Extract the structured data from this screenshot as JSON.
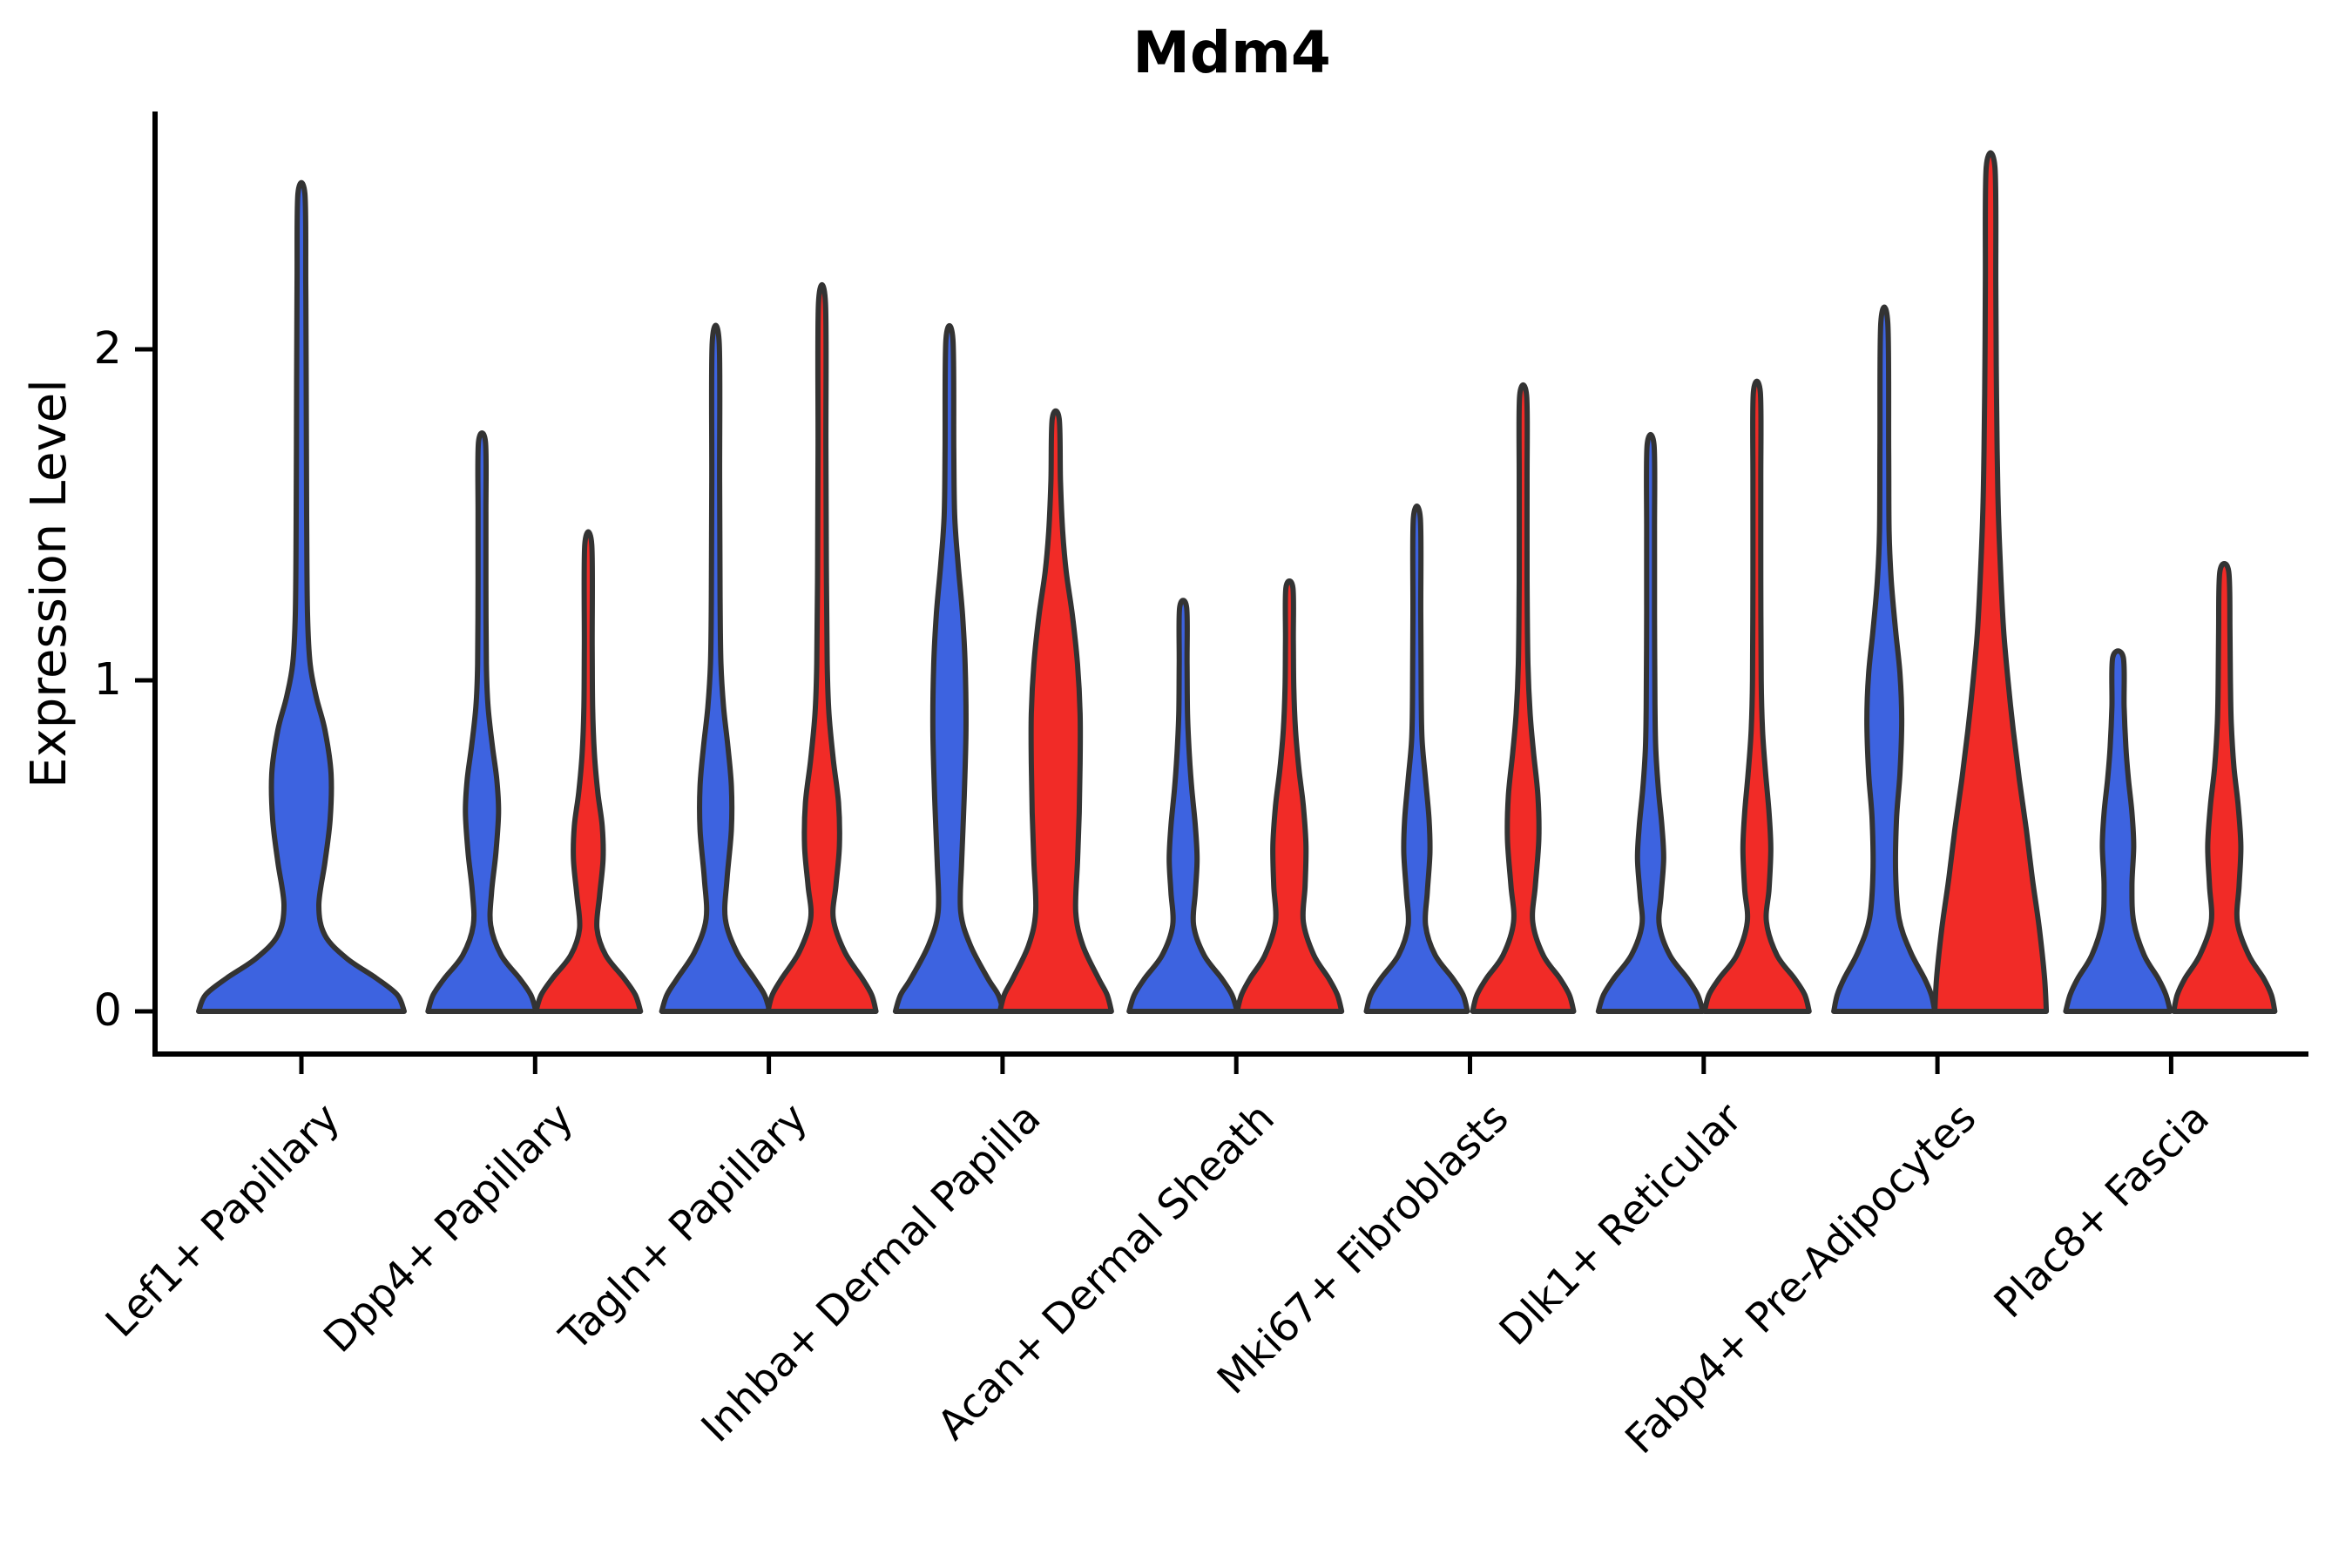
{
  "title": "Mdm4",
  "y_axis": {
    "label": "Expression Level",
    "tick_labels": [
      "0",
      "1",
      "2"
    ],
    "tick_values": [
      0,
      1,
      2
    ]
  },
  "x_axis": {
    "categories": [
      "Lef1+ Papillary",
      "Dpp4+ Papillary",
      "Tagln+ Papillary",
      "Inhba+ Dermal Papilla",
      "Acan+ Dermal Sheath",
      "Mki67+ Fibroblasts",
      "Dlk1+ Reticular",
      "Fabp4+ Pre-Adipocytes",
      "Plac8+ Fascia"
    ]
  },
  "colors": {
    "group_blue": "#3d63e0",
    "group_red": "#f12b27",
    "outline": "#333333",
    "axis": "#000000",
    "text": "#000000",
    "background": "#ffffff"
  },
  "chart_data": {
    "type": "violin",
    "title": "Mdm4",
    "xlabel": "",
    "ylabel": "Expression Level",
    "ylim": [
      0,
      2.7
    ],
    "yticks": [
      0,
      1,
      2
    ],
    "grid": false,
    "legend": "none",
    "categories": [
      "Lef1+ Papillary",
      "Dpp4+ Papillary",
      "Tagln+ Papillary",
      "Inhba+ Dermal Papilla",
      "Acan+ Dermal Sheath",
      "Mki67+ Fibroblasts",
      "Dlk1+ Reticular",
      "Fabp4+ Pre-Adipocytes",
      "Plac8+ Fascia"
    ],
    "groups": [
      {
        "name": "group-blue",
        "color": "#3d63e0"
      },
      {
        "name": "group-red",
        "color": "#f12b27"
      }
    ],
    "violins": [
      {
        "category_index": 0,
        "group": 0,
        "side": "center",
        "max_expression": 2.47,
        "profile": [
          [
            0,
            118
          ],
          [
            0.05,
            110
          ],
          [
            0.1,
            86
          ],
          [
            0.16,
            52
          ],
          [
            0.23,
            27
          ],
          [
            0.32,
            20
          ],
          [
            0.45,
            27
          ],
          [
            0.58,
            33
          ],
          [
            0.72,
            34
          ],
          [
            0.85,
            27
          ],
          [
            0.95,
            17
          ],
          [
            1.05,
            10
          ],
          [
            1.2,
            7
          ],
          [
            1.5,
            6
          ],
          [
            1.9,
            5.5
          ],
          [
            2.2,
            5
          ],
          [
            2.47,
            4
          ]
        ]
      },
      {
        "category_index": 1,
        "group": 0,
        "side": "left",
        "max_expression": 1.72,
        "profile": [
          [
            0,
            62
          ],
          [
            0.05,
            56
          ],
          [
            0.1,
            43
          ],
          [
            0.17,
            22
          ],
          [
            0.26,
            10
          ],
          [
            0.36,
            11
          ],
          [
            0.48,
            16
          ],
          [
            0.6,
            19
          ],
          [
            0.7,
            17
          ],
          [
            0.8,
            12
          ],
          [
            0.92,
            7
          ],
          [
            1.05,
            5
          ],
          [
            1.3,
            4.5
          ],
          [
            1.5,
            4.5
          ],
          [
            1.72,
            4
          ]
        ]
      },
      {
        "category_index": 1,
        "group": 1,
        "side": "right",
        "max_expression": 1.41,
        "profile": [
          [
            0,
            60
          ],
          [
            0.05,
            54
          ],
          [
            0.1,
            41
          ],
          [
            0.17,
            20
          ],
          [
            0.25,
            10
          ],
          [
            0.35,
            13
          ],
          [
            0.46,
            17
          ],
          [
            0.56,
            16
          ],
          [
            0.66,
            11
          ],
          [
            0.78,
            7
          ],
          [
            0.92,
            5
          ],
          [
            1.1,
            4.5
          ],
          [
            1.41,
            4
          ]
        ]
      },
      {
        "category_index": 2,
        "group": 0,
        "side": "left",
        "max_expression": 2.02,
        "profile": [
          [
            0,
            62
          ],
          [
            0.05,
            56
          ],
          [
            0.1,
            44
          ],
          [
            0.18,
            24
          ],
          [
            0.28,
            11
          ],
          [
            0.4,
            13
          ],
          [
            0.55,
            18
          ],
          [
            0.68,
            18
          ],
          [
            0.8,
            14
          ],
          [
            0.92,
            9
          ],
          [
            1.05,
            6
          ],
          [
            1.25,
            5
          ],
          [
            1.6,
            4.5
          ],
          [
            2.02,
            4
          ]
        ]
      },
      {
        "category_index": 2,
        "group": 1,
        "side": "right",
        "max_expression": 2.14,
        "profile": [
          [
            0,
            62
          ],
          [
            0.05,
            57
          ],
          [
            0.1,
            46
          ],
          [
            0.18,
            26
          ],
          [
            0.28,
            13
          ],
          [
            0.38,
            16
          ],
          [
            0.5,
            20
          ],
          [
            0.63,
            19
          ],
          [
            0.76,
            13
          ],
          [
            0.9,
            8
          ],
          [
            1.05,
            6
          ],
          [
            1.35,
            5
          ],
          [
            1.7,
            4.5
          ],
          [
            2.14,
            4
          ]
        ]
      },
      {
        "category_index": 3,
        "group": 0,
        "side": "left",
        "max_expression": 2.03,
        "profile": [
          [
            0,
            62
          ],
          [
            0.05,
            56
          ],
          [
            0.1,
            44
          ],
          [
            0.2,
            24
          ],
          [
            0.3,
            13
          ],
          [
            0.45,
            14
          ],
          [
            0.65,
            17
          ],
          [
            0.85,
            19
          ],
          [
            1.05,
            18
          ],
          [
            1.2,
            15
          ],
          [
            1.35,
            10
          ],
          [
            1.5,
            6
          ],
          [
            1.7,
            5
          ],
          [
            2.03,
            4
          ]
        ]
      },
      {
        "category_index": 3,
        "group": 1,
        "side": "right",
        "max_expression": 1.79,
        "profile": [
          [
            0,
            64
          ],
          [
            0.05,
            59
          ],
          [
            0.1,
            49
          ],
          [
            0.2,
            31
          ],
          [
            0.3,
            23
          ],
          [
            0.45,
            25
          ],
          [
            0.6,
            27
          ],
          [
            0.75,
            28
          ],
          [
            0.9,
            28
          ],
          [
            1.05,
            25
          ],
          [
            1.2,
            19
          ],
          [
            1.33,
            12
          ],
          [
            1.45,
            8
          ],
          [
            1.6,
            5.5
          ],
          [
            1.79,
            4
          ]
        ]
      },
      {
        "category_index": 4,
        "group": 0,
        "side": "left",
        "max_expression": 1.22,
        "profile": [
          [
            0,
            62
          ],
          [
            0.05,
            56
          ],
          [
            0.1,
            44
          ],
          [
            0.17,
            24
          ],
          [
            0.26,
            12
          ],
          [
            0.36,
            14
          ],
          [
            0.46,
            16
          ],
          [
            0.56,
            14
          ],
          [
            0.67,
            10
          ],
          [
            0.78,
            7
          ],
          [
            0.9,
            5
          ],
          [
            1.05,
            4.5
          ],
          [
            1.22,
            4
          ]
        ]
      },
      {
        "category_index": 4,
        "group": 1,
        "side": "right",
        "max_expression": 1.28,
        "profile": [
          [
            0,
            60
          ],
          [
            0.05,
            55
          ],
          [
            0.1,
            45
          ],
          [
            0.17,
            28
          ],
          [
            0.27,
            16
          ],
          [
            0.38,
            18
          ],
          [
            0.5,
            19
          ],
          [
            0.62,
            16
          ],
          [
            0.73,
            11
          ],
          [
            0.85,
            7
          ],
          [
            0.98,
            5
          ],
          [
            1.12,
            4.5
          ],
          [
            1.28,
            4
          ]
        ]
      },
      {
        "category_index": 5,
        "group": 0,
        "side": "left",
        "max_expression": 1.49,
        "profile": [
          [
            0,
            58
          ],
          [
            0.05,
            53
          ],
          [
            0.1,
            41
          ],
          [
            0.17,
            21
          ],
          [
            0.26,
            10
          ],
          [
            0.36,
            12
          ],
          [
            0.48,
            15
          ],
          [
            0.58,
            14
          ],
          [
            0.7,
            10
          ],
          [
            0.82,
            6
          ],
          [
            0.95,
            5
          ],
          [
            1.2,
            4.5
          ],
          [
            1.49,
            4
          ]
        ]
      },
      {
        "category_index": 5,
        "group": 1,
        "side": "right",
        "max_expression": 1.86,
        "profile": [
          [
            0,
            58
          ],
          [
            0.05,
            53
          ],
          [
            0.1,
            42
          ],
          [
            0.17,
            23
          ],
          [
            0.27,
            11
          ],
          [
            0.38,
            14
          ],
          [
            0.52,
            18
          ],
          [
            0.65,
            17
          ],
          [
            0.78,
            12
          ],
          [
            0.9,
            8
          ],
          [
            1.05,
            5.5
          ],
          [
            1.3,
            4.5
          ],
          [
            1.6,
            4.5
          ],
          [
            1.86,
            4
          ]
        ]
      },
      {
        "category_index": 6,
        "group": 0,
        "side": "left",
        "max_expression": 1.71,
        "profile": [
          [
            0,
            60
          ],
          [
            0.05,
            54
          ],
          [
            0.1,
            42
          ],
          [
            0.17,
            22
          ],
          [
            0.26,
            10
          ],
          [
            0.35,
            12
          ],
          [
            0.46,
            15
          ],
          [
            0.56,
            13
          ],
          [
            0.67,
            9
          ],
          [
            0.79,
            6
          ],
          [
            0.93,
            5
          ],
          [
            1.2,
            4.5
          ],
          [
            1.45,
            4.5
          ],
          [
            1.71,
            4
          ]
        ]
      },
      {
        "category_index": 6,
        "group": 1,
        "side": "right",
        "max_expression": 1.87,
        "profile": [
          [
            0,
            60
          ],
          [
            0.05,
            55
          ],
          [
            0.1,
            43
          ],
          [
            0.17,
            23
          ],
          [
            0.27,
            11
          ],
          [
            0.37,
            14
          ],
          [
            0.49,
            16
          ],
          [
            0.6,
            14
          ],
          [
            0.72,
            10
          ],
          [
            0.85,
            6.5
          ],
          [
            1.0,
            5
          ],
          [
            1.3,
            4.5
          ],
          [
            1.6,
            4.5
          ],
          [
            1.87,
            4
          ]
        ]
      },
      {
        "category_index": 7,
        "group": 0,
        "side": "left",
        "max_expression": 2.08,
        "profile": [
          [
            0,
            58
          ],
          [
            0.05,
            54
          ],
          [
            0.1,
            46
          ],
          [
            0.18,
            30
          ],
          [
            0.28,
            17
          ],
          [
            0.42,
            13
          ],
          [
            0.58,
            14
          ],
          [
            0.72,
            18
          ],
          [
            0.88,
            20
          ],
          [
            1.02,
            18
          ],
          [
            1.15,
            13
          ],
          [
            1.3,
            8
          ],
          [
            1.45,
            5.5
          ],
          [
            1.7,
            5
          ],
          [
            2.08,
            4
          ]
        ]
      },
      {
        "category_index": 7,
        "group": 1,
        "side": "right",
        "max_expression": 2.55,
        "profile": [
          [
            0,
            64
          ],
          [
            0.1,
            62
          ],
          [
            0.25,
            56
          ],
          [
            0.4,
            48
          ],
          [
            0.55,
            41
          ],
          [
            0.7,
            33
          ],
          [
            0.85,
            26
          ],
          [
            1.0,
            20
          ],
          [
            1.15,
            15
          ],
          [
            1.3,
            12
          ],
          [
            1.5,
            9
          ],
          [
            1.7,
            7.5
          ],
          [
            1.95,
            6.5
          ],
          [
            2.2,
            6
          ],
          [
            2.55,
            5
          ]
        ]
      },
      {
        "category_index": 8,
        "group": 0,
        "side": "left",
        "max_expression": 1.07,
        "profile": [
          [
            0,
            60
          ],
          [
            0.05,
            55
          ],
          [
            0.1,
            46
          ],
          [
            0.17,
            30
          ],
          [
            0.27,
            18
          ],
          [
            0.38,
            16
          ],
          [
            0.5,
            18
          ],
          [
            0.6,
            16
          ],
          [
            0.7,
            12
          ],
          [
            0.8,
            9
          ],
          [
            0.92,
            7
          ],
          [
            1.07,
            6
          ]
        ]
      },
      {
        "category_index": 8,
        "group": 1,
        "side": "right",
        "max_expression": 1.33,
        "profile": [
          [
            0,
            58
          ],
          [
            0.05,
            54
          ],
          [
            0.1,
            45
          ],
          [
            0.17,
            28
          ],
          [
            0.27,
            15
          ],
          [
            0.38,
            17
          ],
          [
            0.5,
            19
          ],
          [
            0.62,
            16
          ],
          [
            0.74,
            11
          ],
          [
            0.87,
            8
          ],
          [
            1.0,
            7
          ],
          [
            1.15,
            6.5
          ],
          [
            1.33,
            5
          ]
        ]
      }
    ]
  }
}
